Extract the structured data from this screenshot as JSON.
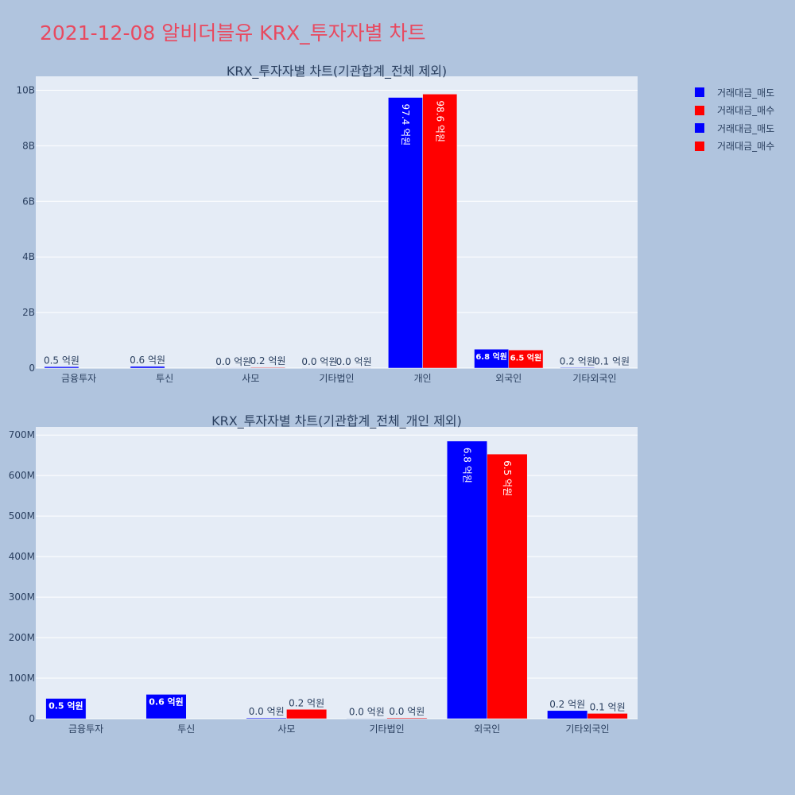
{
  "title": "2021-12-08 알비더블유 KRX_투자자별 차트",
  "legend": [
    {
      "label": "거래대금_매도",
      "color": "#0000ff"
    },
    {
      "label": "거래대금_매수",
      "color": "#ff0000"
    },
    {
      "label": "거래대금_매도",
      "color": "#0000ff"
    },
    {
      "label": "거래대금_매수",
      "color": "#ff0000"
    }
  ],
  "chart_data": [
    {
      "type": "bar",
      "title": "KRX_투자자별 차트(기관합계_전체 제외)",
      "categories": [
        "금융투자",
        "투신",
        "사모",
        "기타법인",
        "개인",
        "외국인",
        "기타외국인"
      ],
      "series": [
        {
          "name": "거래대금_매도",
          "color": "#0000ff",
          "values": [
            50000000,
            60000000,
            2000000,
            1000000,
            9740000000,
            680000000,
            20000000
          ],
          "labels": [
            "0.5 억원",
            "0.6 억원",
            "0.0 억원",
            "0.0 억원",
            "97.4 억원",
            "6.8 억원",
            "0.2 억원"
          ]
        },
        {
          "name": "거래대금_매수",
          "color": "#ff0000",
          "values": [
            0,
            0,
            23000000,
            2000000,
            9860000000,
            650000000,
            13000000
          ],
          "labels": [
            "",
            "",
            "0.2 억원",
            "0.0 억원",
            "98.6 억원",
            "6.5 억원",
            "0.1 억원"
          ]
        }
      ],
      "ylim": [
        0,
        10500000000
      ],
      "yticks": [
        0,
        2000000000,
        4000000000,
        6000000000,
        8000000000,
        10000000000
      ],
      "ytick_labels": [
        "0",
        "2B",
        "4B",
        "6B",
        "8B",
        "10B"
      ],
      "grid": true
    },
    {
      "type": "bar",
      "title": "KRX_투자자별 차트(기관합계_전체_개인 제외)",
      "categories": [
        "금융투자",
        "투신",
        "사모",
        "기타법인",
        "외국인",
        "기타외국인"
      ],
      "series": [
        {
          "name": "거래대금_매도",
          "color": "#0000ff",
          "values": [
            50000000,
            60000000,
            2000000,
            1000000,
            685000000,
            20000000
          ],
          "labels": [
            "0.5 억원",
            "0.6 억원",
            "0.0 억원",
            "0.0 억원",
            "6.8 억원",
            "0.2 억원"
          ]
        },
        {
          "name": "거래대금_매수",
          "color": "#ff0000",
          "values": [
            0,
            0,
            23000000,
            2000000,
            653000000,
            13000000
          ],
          "labels": [
            "",
            "",
            "0.2 억원",
            "0.0 억원",
            "6.5 억원",
            "0.1 억원"
          ]
        }
      ],
      "ylim": [
        0,
        720000000
      ],
      "yticks": [
        0,
        100000000,
        200000000,
        300000000,
        400000000,
        500000000,
        600000000,
        700000000
      ],
      "ytick_labels": [
        "0",
        "100M",
        "200M",
        "300M",
        "400M",
        "500M",
        "600M",
        "700M"
      ],
      "grid": true
    }
  ]
}
